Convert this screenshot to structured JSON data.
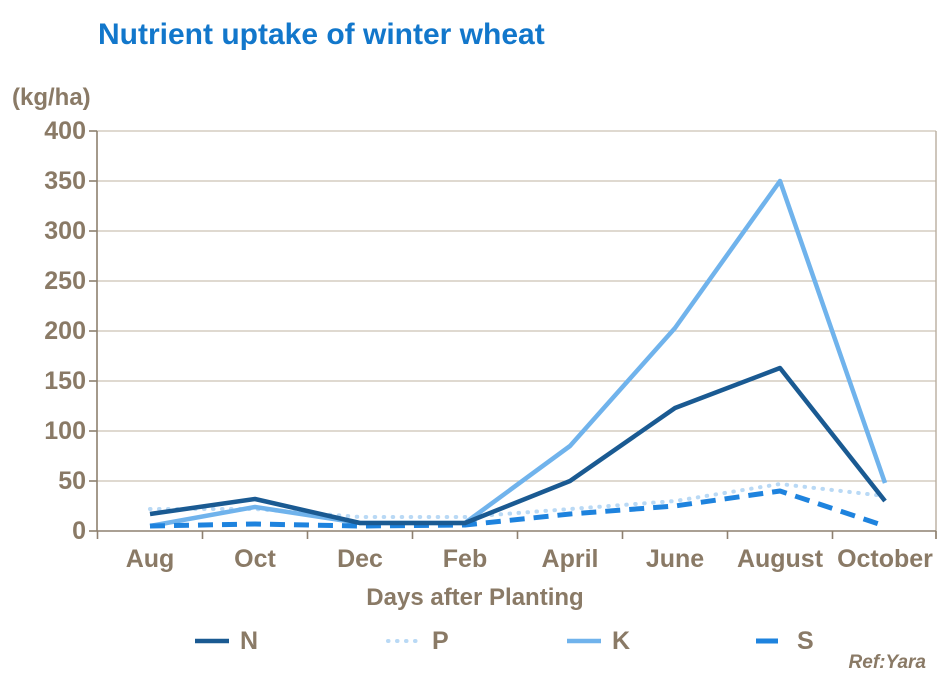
{
  "title": "Nutrient uptake of winter wheat",
  "ref": "Ref:Yara",
  "colors": {
    "title_text": "#1277cb",
    "axis_text": "#8a7a66",
    "axis_line": "#8e8070",
    "gridline": "#ccc2b4",
    "plot_right_border": "#b9ae9f",
    "series_n": "#1a5a92",
    "series_p": "#b9d9f5",
    "series_k": "#70b3ec",
    "series_s": "#1e83de"
  },
  "chart_data": {
    "type": "line",
    "title": "Nutrient uptake of winter wheat",
    "unit_label": "(kg/ha)",
    "xlabel": "Days after Planting",
    "ylabel": "",
    "ylim": [
      0,
      400
    ],
    "ytick_step": 50,
    "yticks": [
      0,
      50,
      100,
      150,
      200,
      250,
      300,
      350,
      400
    ],
    "grid": "horizontal gridlines on",
    "legend_position": "bottom",
    "categories": [
      "Aug",
      "Oct",
      "Dec",
      "Feb",
      "April",
      "June",
      "August",
      "October"
    ],
    "series": [
      {
        "name": "N",
        "style": "solid",
        "color": "#1a5a92",
        "values": [
          17,
          32,
          8,
          8,
          50,
          123,
          163,
          30
        ]
      },
      {
        "name": "P",
        "style": "dotted",
        "color": "#b9d9f5",
        "values": [
          22,
          22,
          14,
          14,
          22,
          30,
          47,
          35
        ]
      },
      {
        "name": "K",
        "style": "solid",
        "color": "#70b3ec",
        "values": [
          5,
          24,
          8,
          8,
          85,
          203,
          350,
          48
        ]
      },
      {
        "name": "S",
        "style": "dashed",
        "color": "#1e83de",
        "values": [
          5,
          7,
          5,
          6,
          17,
          25,
          40,
          5
        ]
      }
    ]
  }
}
